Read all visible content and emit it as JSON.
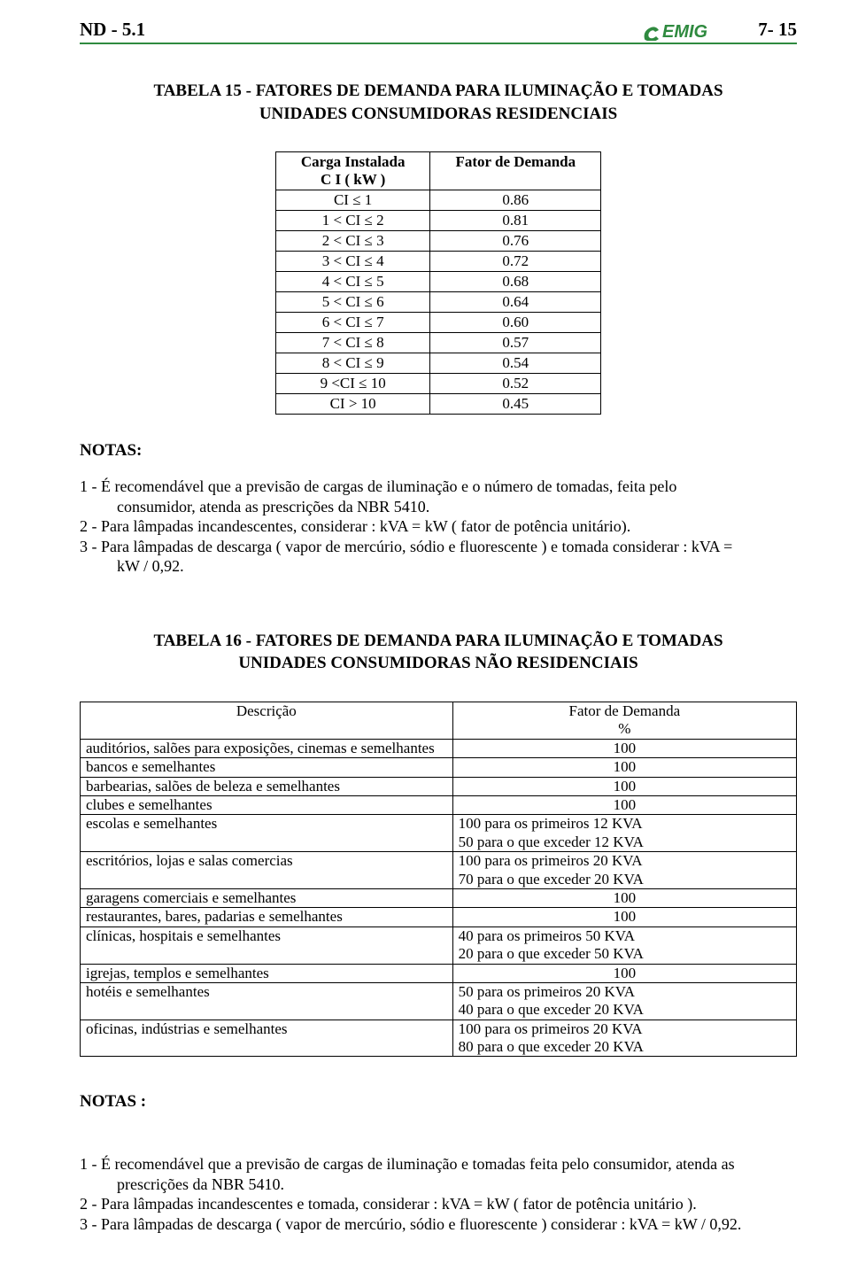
{
  "header": {
    "doc_code": "ND - 5.1",
    "page_number": "7- 15",
    "logo_text": "CEMIG",
    "logo_color": "#2f8a3f"
  },
  "tabela15": {
    "title": "TABELA 15 - FATORES  DE  DEMANDA  PARA  ILUMINAÇÃO  E  TOMADAS\nUNIDADES  CONSUMIDORAS  RESIDENCIAIS",
    "col_header_left_1": "Carga  Instalada",
    "col_header_left_2": "C I    ( kW )",
    "col_header_right": "Fator  de  Demanda",
    "rows": [
      {
        "range": "CI ≤ 1",
        "fator": "0.86"
      },
      {
        "range": "1 <  CI  ≤ 2",
        "fator": "0.81"
      },
      {
        "range": "2 <  CI  ≤ 3",
        "fator": "0.76"
      },
      {
        "range": "3 <  CI  ≤ 4",
        "fator": "0.72"
      },
      {
        "range": "4 <  CI  ≤ 5",
        "fator": "0.68"
      },
      {
        "range": "5 <  CI  ≤ 6",
        "fator": "0.64"
      },
      {
        "range": "6 <  CI  ≤ 7",
        "fator": "0.60"
      },
      {
        "range": "7  < CI  ≤ 8",
        "fator": "0.57"
      },
      {
        "range": "8 <  CI  ≤ 9",
        "fator": "0.54"
      },
      {
        "range": "9  <CI  ≤ 10",
        "fator": "0.52"
      },
      {
        "range": "CI  > 10",
        "fator": "0.45"
      }
    ]
  },
  "notas1": {
    "label": "NOTAS:",
    "n1a": "1 - É recomendável que a previsão de cargas de iluminação e o número de tomadas, feita pelo",
    "n1b": "consumidor, atenda as prescrições da  NBR  5410.",
    "n2": "2 - Para lâmpadas incandescentes, considerar : kVA = kW ( fator de potência unitário).",
    "n3a": "3 - Para lâmpadas de descarga ( vapor de mercúrio, sódio e fluorescente ) e tomada considerar : kVA =",
    "n3b": "kW / 0,92."
  },
  "tabela16": {
    "title": "TABELA 16 - FATORES  DE  DEMANDA  PARA  ILUMINAÇÃO  E  TOMADAS\nUNIDADES  CONSUMIDORAS  NÃO  RESIDENCIAIS",
    "col_header_left": "Descrição",
    "col_header_right_1": "Fator  de  Demanda",
    "col_header_right_2": "%",
    "rows": [
      {
        "desc": "auditórios, salões para exposições, cinemas e semelhantes",
        "lines": [
          "100"
        ],
        "align": "center"
      },
      {
        "desc": "bancos e semelhantes",
        "lines": [
          "100"
        ],
        "align": "center"
      },
      {
        "desc": "barbearias, salões de beleza e semelhantes",
        "lines": [
          "100"
        ],
        "align": "center"
      },
      {
        "desc": "clubes e semelhantes",
        "lines": [
          "100"
        ],
        "align": "center"
      },
      {
        "desc": "escolas e semelhantes",
        "lines": [
          "100 para os primeiros 12 KVA",
          "50 para o que exceder 12 KVA"
        ],
        "align": "left"
      },
      {
        "desc": "escritórios, lojas e salas comercias",
        "lines": [
          "100 para os primeiros 20 KVA",
          "70 para o que exceder 20 KVA"
        ],
        "align": "left"
      },
      {
        "desc": "garagens comerciais e semelhantes",
        "lines": [
          "100"
        ],
        "align": "center"
      },
      {
        "desc": "restaurantes, bares, padarias e semelhantes",
        "lines": [
          "100"
        ],
        "align": "center"
      },
      {
        "desc": "clínicas, hospitais e semelhantes",
        "lines": [
          "40 para os primeiros 50 KVA",
          "20 para o que exceder 50 KVA"
        ],
        "align": "left"
      },
      {
        "desc": "igrejas, templos e semelhantes",
        "lines": [
          "100"
        ],
        "align": "center"
      },
      {
        "desc": "hotéis e semelhantes",
        "lines": [
          "50 para os primeiros 20 KVA",
          "40 para o que exceder 20 KVA"
        ],
        "align": "left"
      },
      {
        "desc": "oficinas, indústrias e semelhantes",
        "lines": [
          "100 para os primeiros 20 KVA",
          "80 para o que exceder 20 KVA"
        ],
        "align": "left"
      }
    ]
  },
  "notas2": {
    "label": "NOTAS :",
    "n1a": "1 - É recomendável que a previsão de cargas de iluminação e tomadas feita pelo consumidor, atenda as",
    "n1b": "prescrições da NBR 5410.",
    "n2": "2 - Para lâmpadas incandescentes e tomada, considerar : kVA =  kW ( fator de potência unitário ).",
    "n3": "3 - Para lâmpadas de descarga ( vapor de mercúrio, sódio e fluorescente ) considerar : kVA = kW / 0,92."
  }
}
